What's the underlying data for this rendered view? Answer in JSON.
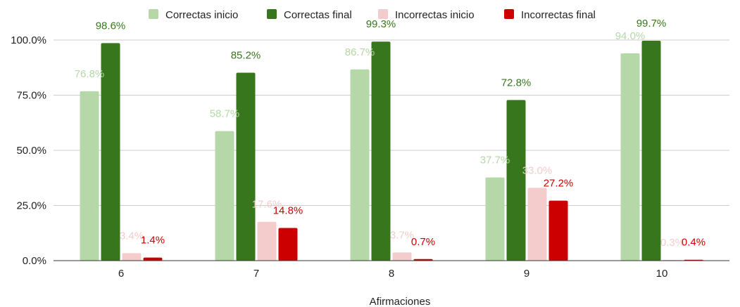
{
  "chart_data": {
    "type": "bar",
    "title": "",
    "xlabel": "Afirmaciones",
    "ylabel": "",
    "categories": [
      "6",
      "7",
      "8",
      "9",
      "10"
    ],
    "series": [
      {
        "name": "Correctas inicio",
        "color": "#b6d7a8",
        "values": [
          76.8,
          58.7,
          86.7,
          37.7,
          94.0
        ],
        "labels": [
          "76.8%",
          "58.7%",
          "86.7%",
          "37.7%",
          "94.0%"
        ]
      },
      {
        "name": "Correctas final",
        "color": "#38761d",
        "values": [
          98.6,
          85.2,
          99.3,
          72.8,
          99.7
        ],
        "labels": [
          "98.6%",
          "85.2%",
          "99.3%",
          "72.8%",
          "99.7%"
        ]
      },
      {
        "name": "Incorrectas inicio",
        "color": "#f4cccc",
        "values": [
          3.4,
          17.6,
          3.7,
          33.0,
          0.3
        ],
        "labels": [
          "3.4%",
          "17.6%",
          "3.7%",
          "33.0%",
          "0.3%"
        ]
      },
      {
        "name": "Incorrectas final",
        "color": "#cc0000",
        "values": [
          1.4,
          14.8,
          0.7,
          27.2,
          0.4
        ],
        "labels": [
          "1.4%",
          "14.8%",
          "0.7%",
          "27.2%",
          "0.4%"
        ]
      }
    ],
    "ylim": [
      0,
      100
    ],
    "yticks": [
      0,
      25,
      50,
      75,
      100
    ],
    "ytick_labels": [
      "0.0%",
      "25.0%",
      "50.0%",
      "75.0%",
      "100.0%"
    ],
    "grid": true,
    "legend_position": "top"
  }
}
